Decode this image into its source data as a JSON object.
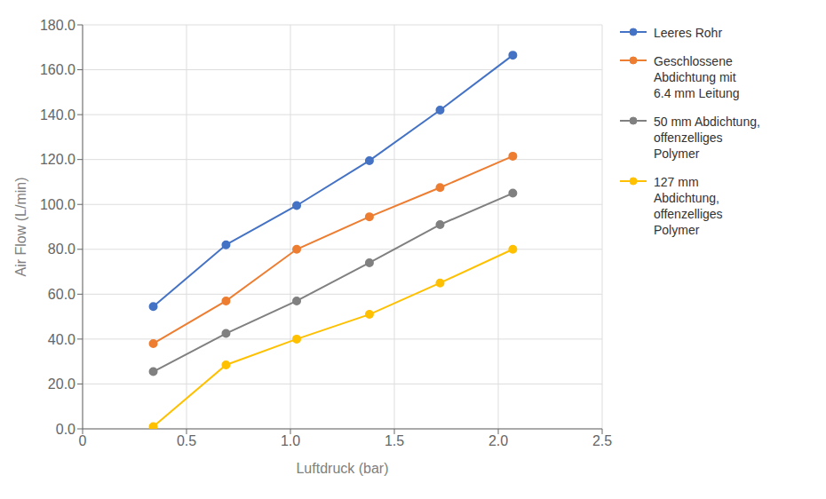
{
  "chart_data": {
    "type": "line",
    "xlabel": "Luftdruck (bar)",
    "ylabel": "Air Flow (L/min)",
    "x": [
      0.34,
      0.69,
      1.03,
      1.38,
      1.72,
      2.07
    ],
    "series": [
      {
        "name": "Leeres Rohr",
        "color": "#4472C4",
        "values": [
          54.5,
          82.0,
          99.5,
          119.5,
          142.0,
          166.5
        ]
      },
      {
        "name": "Geschlossene\nAbdichtung mit\n6.4 mm Leitung",
        "color": "#ED7D31",
        "values": [
          38.0,
          57.0,
          80.0,
          94.5,
          107.5,
          121.5
        ]
      },
      {
        "name": "50 mm Abdichtung,\noffenzelliges\nPolymer",
        "color": "#808080",
        "values": [
          25.5,
          42.5,
          57.0,
          74.0,
          91.0,
          105.0
        ]
      },
      {
        "name": "127 mm\nAbdichtung,\noffenzelliges\nPolymer",
        "color": "#FFC000",
        "values": [
          1.0,
          28.5,
          40.0,
          51.0,
          65.0,
          80.0
        ]
      }
    ],
    "xlim": [
      0,
      2.5
    ],
    "ylim": [
      0.0,
      180.0
    ],
    "xticks": [
      0,
      0.5,
      {
        "value": 1.0,
        "label": "1.0"
      },
      1.5,
      {
        "value": 2.0,
        "label": "2.0"
      },
      2.5
    ],
    "yticks": [
      {
        "value": 0,
        "label": "0.0"
      },
      {
        "value": 20,
        "label": "20.0"
      },
      {
        "value": 40,
        "label": "40.0"
      },
      {
        "value": 60,
        "label": "60.0"
      },
      {
        "value": 80,
        "label": "80.0"
      },
      {
        "value": 100,
        "label": "100.0"
      },
      {
        "value": 120,
        "label": "120.0"
      },
      {
        "value": 140,
        "label": "140.0"
      },
      {
        "value": 160,
        "label": "160.0"
      },
      {
        "value": 180,
        "label": "180.0"
      }
    ],
    "marker": "circle",
    "grid": true,
    "legend": "right"
  }
}
